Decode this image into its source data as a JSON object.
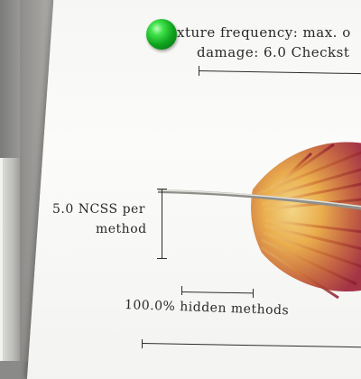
{
  "labels": {
    "freq_line": "xture frequency: max. o",
    "damage_line": "damage: 6.0 Checkst",
    "ncss_line1": "5.0 NCSS per",
    "ncss_line2": "method",
    "hidden_methods": "100.0% hidden methods"
  },
  "colors": {
    "marker": "#16b023",
    "feather_red": "#b3242f",
    "feather_gold": "#e8a53a"
  }
}
